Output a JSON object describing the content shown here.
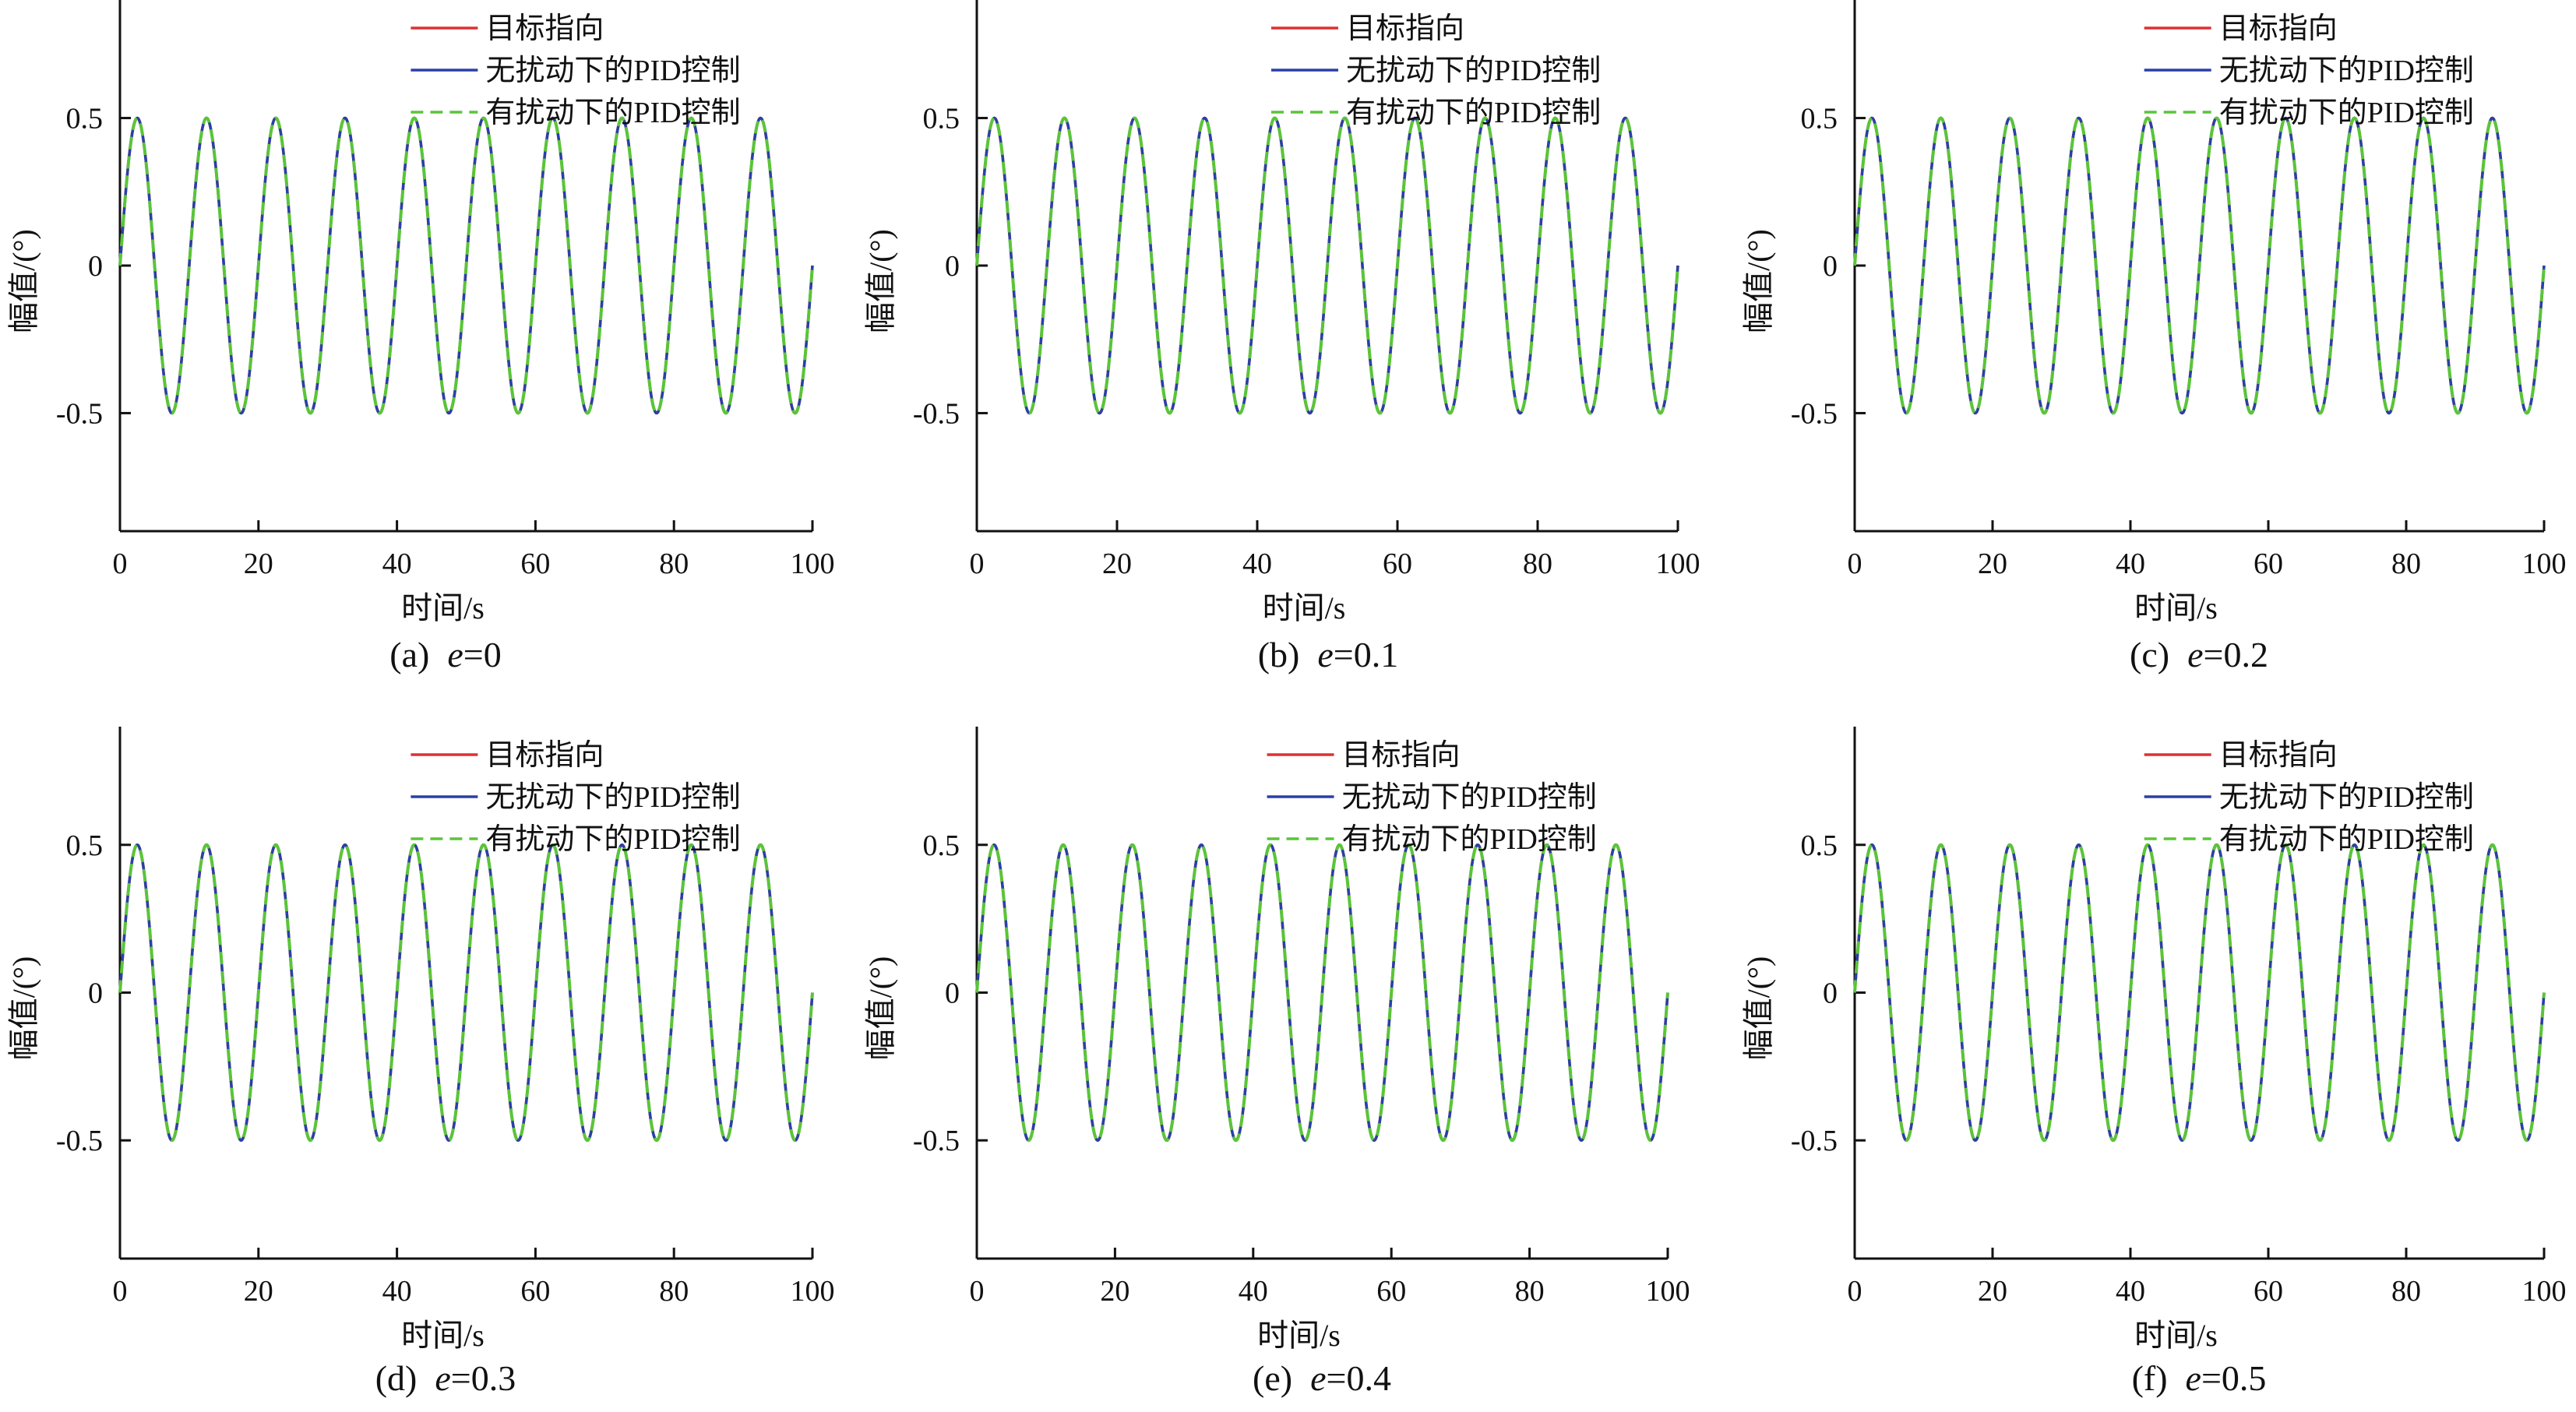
{
  "colors": {
    "target": "#e03030",
    "no_disturbance": "#2b3fa8",
    "with_disturbance": "#5bc43a",
    "axis": "#111111"
  },
  "legend_labels": [
    "目标指向",
    "无扰动下的PID控制",
    "有扰动下的PID控制"
  ],
  "chart_data": [
    {
      "type": "line",
      "caption_prefix": "(a)",
      "caption_var": "e",
      "caption_value": "=0",
      "xlabel": "时间/s",
      "ylabel": "幅值/(°)",
      "xlim": [
        0,
        100
      ],
      "ylim": [
        -0.9,
        0.9
      ],
      "xticks": [
        0,
        20,
        40,
        60,
        80,
        100
      ],
      "yticks": [
        -0.5,
        0,
        0.5
      ],
      "ytick_labels": [
        "-0.5",
        "0",
        "0.5"
      ],
      "grid": false,
      "legend_position": "top-right",
      "series": [
        {
          "name": "目标指向",
          "style": "solid",
          "function": "0.5*sin(2*pi*x/10)"
        },
        {
          "name": "无扰动下的PID控制",
          "style": "solid",
          "function": "0.5*sin(2*pi*x/10)"
        },
        {
          "name": "有扰动下的PID控制",
          "style": "dashed",
          "function": "0.5*sin(2*pi*x/10)"
        }
      ],
      "amplitude": 0.5,
      "period": 10
    },
    {
      "type": "line",
      "caption_prefix": "(b)",
      "caption_var": "e",
      "caption_value": "=0.1",
      "xlabel": "时间/s",
      "ylabel": "幅值/(°)",
      "xlim": [
        0,
        100
      ],
      "ylim": [
        -0.9,
        0.9
      ],
      "xticks": [
        0,
        20,
        40,
        60,
        80,
        100
      ],
      "yticks": [
        -0.5,
        0,
        0.5
      ],
      "ytick_labels": [
        "-0.5",
        "0",
        "0.5"
      ],
      "grid": false,
      "legend_position": "top-right",
      "series": [
        {
          "name": "目标指向",
          "style": "solid",
          "function": "0.5*sin(2*pi*x/10)"
        },
        {
          "name": "无扰动下的PID控制",
          "style": "solid",
          "function": "0.5*sin(2*pi*x/10)"
        },
        {
          "name": "有扰动下的PID控制",
          "style": "dashed",
          "function": "0.5*sin(2*pi*x/10)"
        }
      ],
      "amplitude": 0.5,
      "period": 10
    },
    {
      "type": "line",
      "caption_prefix": "(c)",
      "caption_var": "e",
      "caption_value": "=0.2",
      "xlabel": "时间/s",
      "ylabel": "幅值/(°)",
      "xlim": [
        0,
        100
      ],
      "ylim": [
        -0.9,
        0.9
      ],
      "xticks": [
        0,
        20,
        40,
        60,
        80,
        100
      ],
      "yticks": [
        -0.5,
        0,
        0.5
      ],
      "ytick_labels": [
        "-0.5",
        "0",
        "0.5"
      ],
      "grid": false,
      "legend_position": "top-right",
      "series": [
        {
          "name": "目标指向",
          "style": "solid",
          "function": "0.5*sin(2*pi*x/10)"
        },
        {
          "name": "无扰动下的PID控制",
          "style": "solid",
          "function": "0.5*sin(2*pi*x/10)"
        },
        {
          "name": "有扰动下的PID控制",
          "style": "dashed",
          "function": "0.5*sin(2*pi*x/10)"
        }
      ],
      "amplitude": 0.5,
      "period": 10
    },
    {
      "type": "line",
      "caption_prefix": "(d)",
      "caption_var": "e",
      "caption_value": "=0.3",
      "xlabel": "时间/s",
      "ylabel": "幅值/(°)",
      "xlim": [
        0,
        100
      ],
      "ylim": [
        -0.9,
        0.9
      ],
      "xticks": [
        0,
        20,
        40,
        60,
        80,
        100
      ],
      "yticks": [
        -0.5,
        0,
        0.5
      ],
      "ytick_labels": [
        "-0.5",
        "0",
        "0.5"
      ],
      "grid": false,
      "legend_position": "top-right",
      "series": [
        {
          "name": "目标指向",
          "style": "solid",
          "function": "0.5*sin(2*pi*x/10)"
        },
        {
          "name": "无扰动下的PID控制",
          "style": "solid",
          "function": "0.5*sin(2*pi*x/10)"
        },
        {
          "name": "有扰动下的PID控制",
          "style": "dashed",
          "function": "0.5*sin(2*pi*x/10)"
        }
      ],
      "amplitude": 0.5,
      "period": 10
    },
    {
      "type": "line",
      "caption_prefix": "(e)",
      "caption_var": "e",
      "caption_value": "=0.4",
      "xlabel": "时间/s",
      "ylabel": "幅值/(°)",
      "xlim": [
        0,
        100
      ],
      "ylim": [
        -0.9,
        0.9
      ],
      "xticks": [
        0,
        20,
        40,
        60,
        80,
        100
      ],
      "yticks": [
        -0.5,
        0,
        0.5
      ],
      "ytick_labels": [
        "-0.5",
        "0",
        "0.5"
      ],
      "grid": false,
      "legend_position": "top-right",
      "series": [
        {
          "name": "目标指向",
          "style": "solid",
          "function": "0.5*sin(2*pi*x/10)"
        },
        {
          "name": "无扰动下的PID控制",
          "style": "solid",
          "function": "0.5*sin(2*pi*x/10)"
        },
        {
          "name": "有扰动下的PID控制",
          "style": "dashed",
          "function": "0.5*sin(2*pi*x/10)"
        }
      ],
      "amplitude": 0.5,
      "period": 10
    },
    {
      "type": "line",
      "caption_prefix": "(f)",
      "caption_var": "e",
      "caption_value": "=0.5",
      "xlabel": "时间/s",
      "ylabel": "幅值/(°)",
      "xlim": [
        0,
        100
      ],
      "ylim": [
        -0.9,
        0.9
      ],
      "xticks": [
        0,
        20,
        40,
        60,
        80,
        100
      ],
      "yticks": [
        -0.5,
        0,
        0.5
      ],
      "ytick_labels": [
        "-0.5",
        "0",
        "0.5"
      ],
      "grid": false,
      "legend_position": "top-right",
      "series": [
        {
          "name": "目标指向",
          "style": "solid",
          "function": "0.5*sin(2*pi*x/10)"
        },
        {
          "name": "无扰动下的PID控制",
          "style": "solid",
          "function": "0.5*sin(2*pi*x/10)"
        },
        {
          "name": "有扰动下的PID控制",
          "style": "dashed",
          "function": "0.5*sin(2*pi*x/10)"
        }
      ],
      "amplitude": 0.5,
      "period": 10
    }
  ]
}
